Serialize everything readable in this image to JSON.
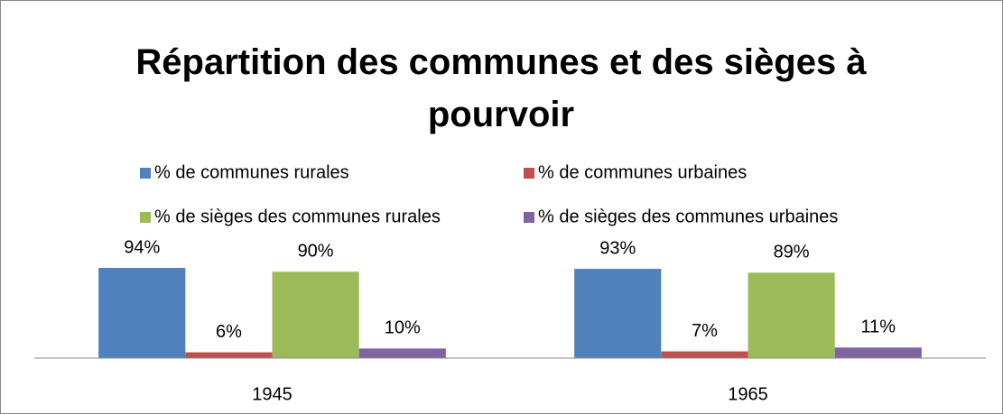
{
  "chart_data": {
    "type": "bar",
    "title": "Répartition des communes et des sièges à pourvoir",
    "categories": [
      "1945",
      "1965"
    ],
    "series": [
      {
        "name": "% de communes rurales",
        "color": "#4f81bd",
        "values": [
          94,
          93
        ],
        "value_labels": [
          "94%",
          "93%"
        ]
      },
      {
        "name": "% de communes urbaines",
        "color": "#c0504d",
        "values": [
          6,
          7
        ],
        "value_labels": [
          "6%",
          "7%"
        ]
      },
      {
        "name": "% de sièges des communes rurales",
        "color": "#9bbb59",
        "values": [
          90,
          89
        ],
        "value_labels": [
          "90%",
          "89%"
        ]
      },
      {
        "name": "% de sièges des communes urbaines",
        "color": "#8064a2",
        "values": [
          10,
          11
        ],
        "value_labels": [
          "10%",
          "11%"
        ]
      }
    ],
    "ylim": [
      0,
      100
    ],
    "legend": "top"
  }
}
